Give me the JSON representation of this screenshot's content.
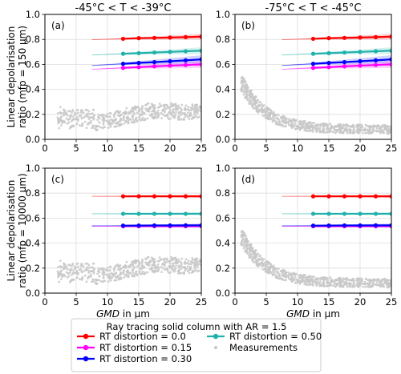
{
  "figure": {
    "ylabel_top": "Linear depolarisation\nratio (mfp = 150 μm)",
    "ylabel_bottom": "Linear depolarisation\nratio (mfp = 10000 μm)",
    "xlabel_italic": "GMD",
    "xlabel_rest": " in μm"
  },
  "legend": {
    "title": "Ray tracing solid column with AR = 1.5",
    "entries": [
      {
        "label": "RT distortion = 0.0",
        "color": "#ff0000",
        "kind": "line"
      },
      {
        "label": "RT distortion = 0.15",
        "color": "#ff00ff",
        "kind": "line"
      },
      {
        "label": "RT distortion = 0.30",
        "color": "#0000ff",
        "kind": "line"
      },
      {
        "label": "RT distortion = 0.50",
        "color": "#20b2aa",
        "kind": "line"
      },
      {
        "label": "Measurements",
        "color": "#c8c8c8",
        "kind": "marker"
      }
    ]
  },
  "chart_data": [
    {
      "type": "scatter",
      "panel_label": "(a)",
      "column_title": "-45°C < T < -39°C",
      "xlim": [
        0,
        25
      ],
      "ylim": [
        0,
        1.0
      ],
      "xticks": [
        "0",
        "5",
        "10",
        "15",
        "20",
        "25"
      ],
      "yticks": [
        "0.0",
        "0.2",
        "0.4",
        "0.6",
        "0.8",
        "1.0"
      ],
      "grid": true,
      "series": [
        {
          "name": "RT distortion = 0.0",
          "color": "#ff0000",
          "x": [
            12.5,
            15,
            17.5,
            20,
            22.5,
            25
          ],
          "y": [
            0.805,
            0.81,
            0.812,
            0.815,
            0.818,
            0.822
          ],
          "shade_from_x": 7.5
        },
        {
          "name": "RT distortion = 0.50",
          "color": "#20b2aa",
          "x": [
            12.5,
            15,
            17.5,
            20,
            22.5,
            25
          ],
          "y": [
            0.685,
            0.69,
            0.695,
            0.7,
            0.705,
            0.71
          ],
          "shade_from_x": 7.5
        },
        {
          "name": "RT distortion = 0.30",
          "color": "#0000ff",
          "x": [
            12.5,
            15,
            17.5,
            20,
            22.5,
            25
          ],
          "y": [
            0.605,
            0.612,
            0.618,
            0.625,
            0.632,
            0.64
          ],
          "shade_from_x": 7.5
        },
        {
          "name": "RT distortion = 0.15",
          "color": "#ff00ff",
          "x": [
            12.5,
            15,
            17.5,
            20,
            22.5,
            25
          ],
          "y": [
            0.572,
            0.578,
            0.584,
            0.59,
            0.595,
            0.6
          ],
          "shade_from_x": 7.5
        },
        {
          "name": "Measurements",
          "color": "#c8c8c8",
          "cloud": "A"
        }
      ]
    },
    {
      "type": "scatter",
      "panel_label": "(b)",
      "column_title": "-75°C < T < -45°C",
      "xlim": [
        0,
        25
      ],
      "ylim": [
        0,
        1.0
      ],
      "xticks": [
        "0",
        "5",
        "10",
        "15",
        "20",
        "25"
      ],
      "yticks": [
        "0.0",
        "0.2",
        "0.4",
        "0.6",
        "0.8",
        "1.0"
      ],
      "grid": true,
      "series": [
        {
          "name": "RT distortion = 0.0",
          "color": "#ff0000",
          "x": [
            12.5,
            15,
            17.5,
            20,
            22.5,
            25
          ],
          "y": [
            0.805,
            0.81,
            0.812,
            0.815,
            0.818,
            0.822
          ],
          "shade_from_x": 7.5
        },
        {
          "name": "RT distortion = 0.50",
          "color": "#20b2aa",
          "x": [
            12.5,
            15,
            17.5,
            20,
            22.5,
            25
          ],
          "y": [
            0.685,
            0.69,
            0.695,
            0.7,
            0.705,
            0.71
          ],
          "shade_from_x": 7.5
        },
        {
          "name": "RT distortion = 0.30",
          "color": "#0000ff",
          "x": [
            12.5,
            15,
            17.5,
            20,
            22.5,
            25
          ],
          "y": [
            0.605,
            0.612,
            0.618,
            0.625,
            0.632,
            0.64
          ],
          "shade_from_x": 7.5
        },
        {
          "name": "RT distortion = 0.15",
          "color": "#ff00ff",
          "x": [
            12.5,
            15,
            17.5,
            20,
            22.5,
            25
          ],
          "y": [
            0.572,
            0.578,
            0.584,
            0.59,
            0.595,
            0.6
          ],
          "shade_from_x": 7.5
        },
        {
          "name": "Measurements",
          "color": "#c8c8c8",
          "cloud": "B"
        }
      ]
    },
    {
      "type": "scatter",
      "panel_label": "(c)",
      "xlabel": "GMD in μm",
      "xlim": [
        0,
        25
      ],
      "ylim": [
        0,
        1.0
      ],
      "xticks": [
        "0",
        "5",
        "10",
        "15",
        "20",
        "25"
      ],
      "yticks": [
        "0.0",
        "0.2",
        "0.4",
        "0.6",
        "0.8",
        "1.0"
      ],
      "grid": true,
      "series": [
        {
          "name": "RT distortion = 0.0",
          "color": "#ff0000",
          "x": [
            12.5,
            15,
            17.5,
            20,
            22.5,
            25
          ],
          "y": [
            0.775,
            0.775,
            0.775,
            0.775,
            0.775,
            0.775
          ],
          "shade_from_x": 7.5
        },
        {
          "name": "RT distortion = 0.50",
          "color": "#20b2aa",
          "x": [
            12.5,
            15,
            17.5,
            20,
            22.5,
            25
          ],
          "y": [
            0.635,
            0.635,
            0.635,
            0.635,
            0.635,
            0.635
          ],
          "shade_from_x": 7.5
        },
        {
          "name": "RT distortion = 0.15",
          "color": "#ff00ff",
          "x": [
            12.5,
            15,
            17.5,
            20,
            22.5,
            25
          ],
          "y": [
            0.535,
            0.535,
            0.535,
            0.535,
            0.535,
            0.535
          ],
          "shade_from_x": 7.5
        },
        {
          "name": "RT distortion = 0.30",
          "color": "#0000ff",
          "x": [
            12.5,
            15,
            17.5,
            20,
            22.5,
            25
          ],
          "y": [
            0.54,
            0.541,
            0.542,
            0.542,
            0.543,
            0.543
          ],
          "shade_from_x": 7.5
        },
        {
          "name": "Measurements",
          "color": "#c8c8c8",
          "cloud": "A"
        }
      ]
    },
    {
      "type": "scatter",
      "panel_label": "(d)",
      "xlabel": "GMD in μm",
      "xlim": [
        0,
        25
      ],
      "ylim": [
        0,
        1.0
      ],
      "xticks": [
        "0",
        "5",
        "10",
        "15",
        "20",
        "25"
      ],
      "yticks": [
        "0.0",
        "0.2",
        "0.4",
        "0.6",
        "0.8",
        "1.0"
      ],
      "grid": true,
      "series": [
        {
          "name": "RT distortion = 0.0",
          "color": "#ff0000",
          "x": [
            12.5,
            15,
            17.5,
            20,
            22.5,
            25
          ],
          "y": [
            0.775,
            0.775,
            0.775,
            0.775,
            0.775,
            0.775
          ],
          "shade_from_x": 7.5
        },
        {
          "name": "RT distortion = 0.50",
          "color": "#20b2aa",
          "x": [
            12.5,
            15,
            17.5,
            20,
            22.5,
            25
          ],
          "y": [
            0.635,
            0.635,
            0.635,
            0.635,
            0.635,
            0.635
          ],
          "shade_from_x": 7.5
        },
        {
          "name": "RT distortion = 0.15",
          "color": "#ff00ff",
          "x": [
            12.5,
            15,
            17.5,
            20,
            22.5,
            25
          ],
          "y": [
            0.535,
            0.535,
            0.535,
            0.535,
            0.535,
            0.535
          ],
          "shade_from_x": 7.5
        },
        {
          "name": "RT distortion = 0.30",
          "color": "#0000ff",
          "x": [
            12.5,
            15,
            17.5,
            20,
            22.5,
            25
          ],
          "y": [
            0.54,
            0.541,
            0.542,
            0.542,
            0.543,
            0.543
          ],
          "shade_from_x": 7.5
        },
        {
          "name": "Measurements",
          "color": "#c8c8c8",
          "cloud": "B"
        }
      ]
    }
  ]
}
